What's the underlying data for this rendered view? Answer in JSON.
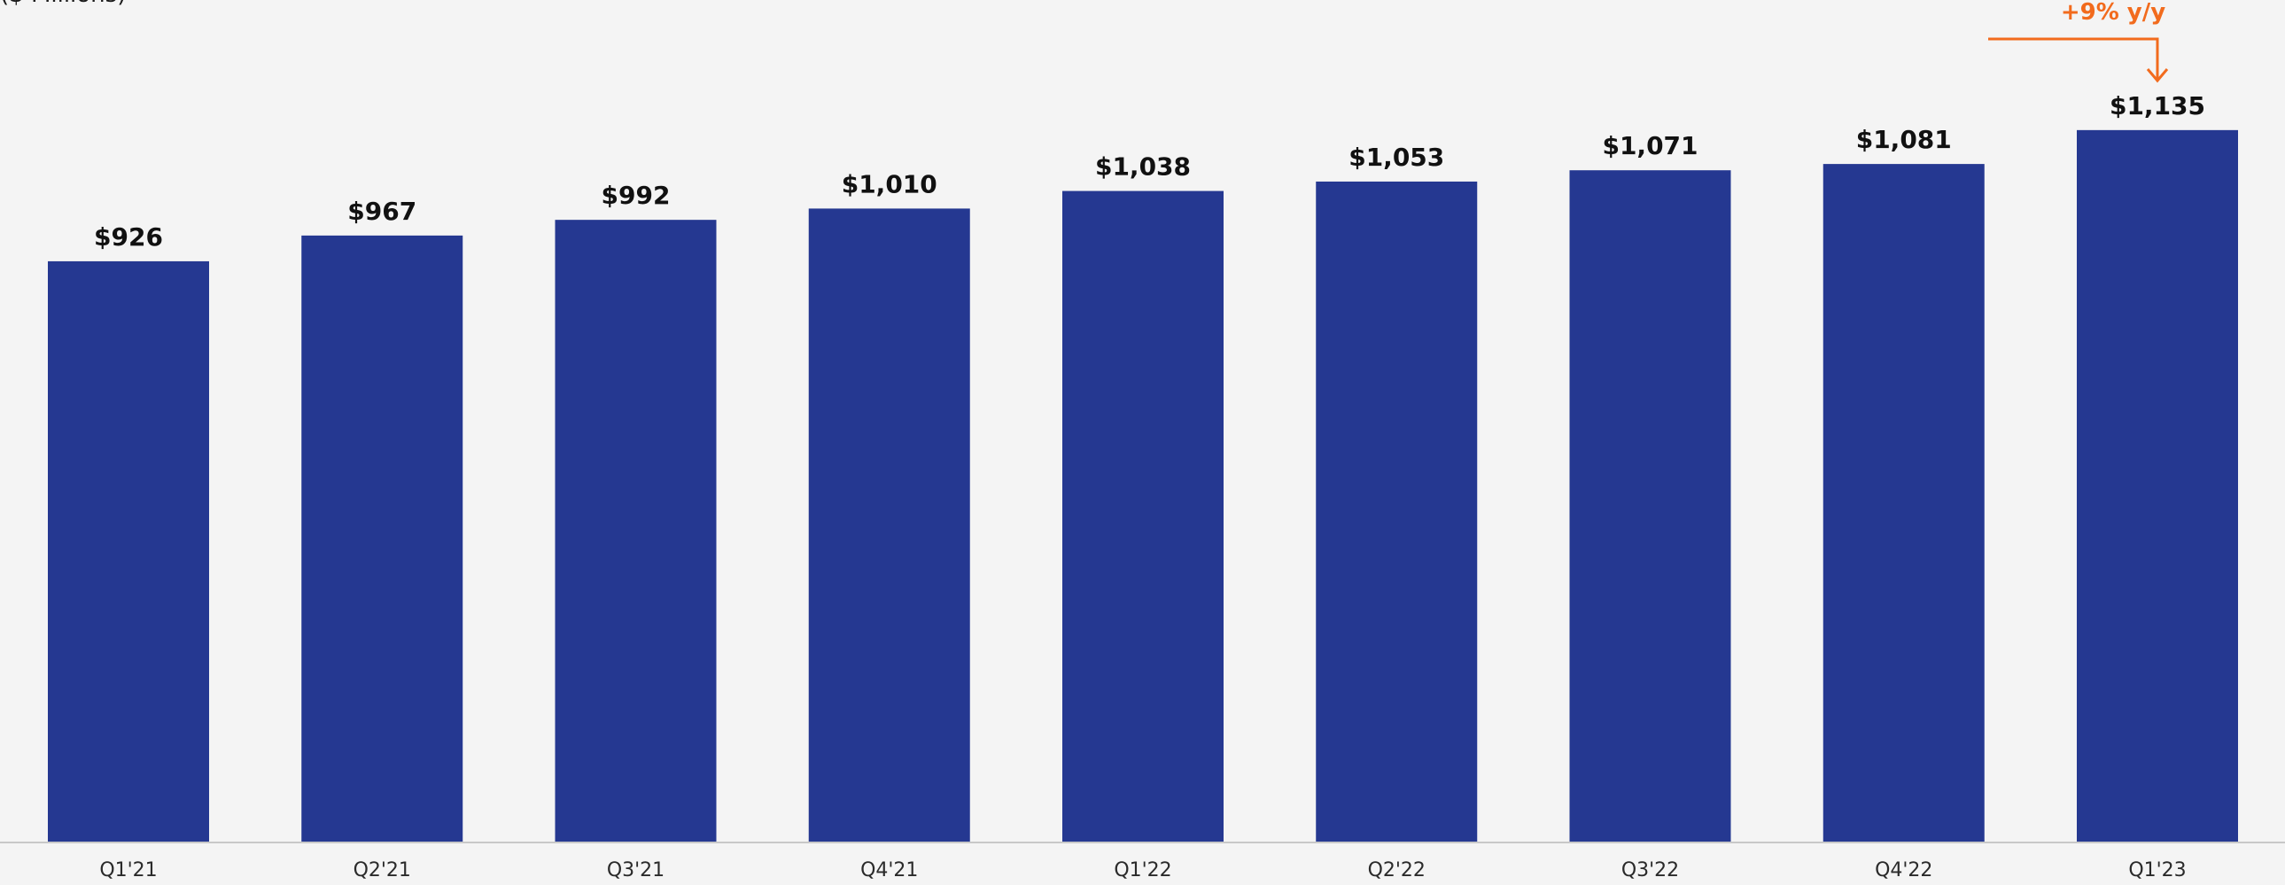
{
  "chart_data": {
    "type": "bar",
    "units_label": "($ Millions)",
    "categories": [
      "Q1'21",
      "Q2'21",
      "Q3'21",
      "Q4'21",
      "Q1'22",
      "Q2'22",
      "Q3'22",
      "Q4'22",
      "Q1'23"
    ],
    "values": [
      926,
      967,
      992,
      1010,
      1038,
      1053,
      1071,
      1081,
      1135
    ],
    "value_labels": [
      "$926",
      "$967",
      "$992",
      "$1,010",
      "$1,038",
      "$1,053",
      "$1,071",
      "$1,081",
      "$1,135"
    ],
    "annotation": {
      "text": "+9% y/y",
      "target_category": "Q1'23",
      "from_category": "Q1'22"
    },
    "title": "",
    "xlabel": "",
    "ylabel": "",
    "grid": false,
    "legend": "none",
    "colors": {
      "bar": "#253891",
      "annotation": "#f26b1d",
      "background": "#f4f4f4"
    }
  }
}
